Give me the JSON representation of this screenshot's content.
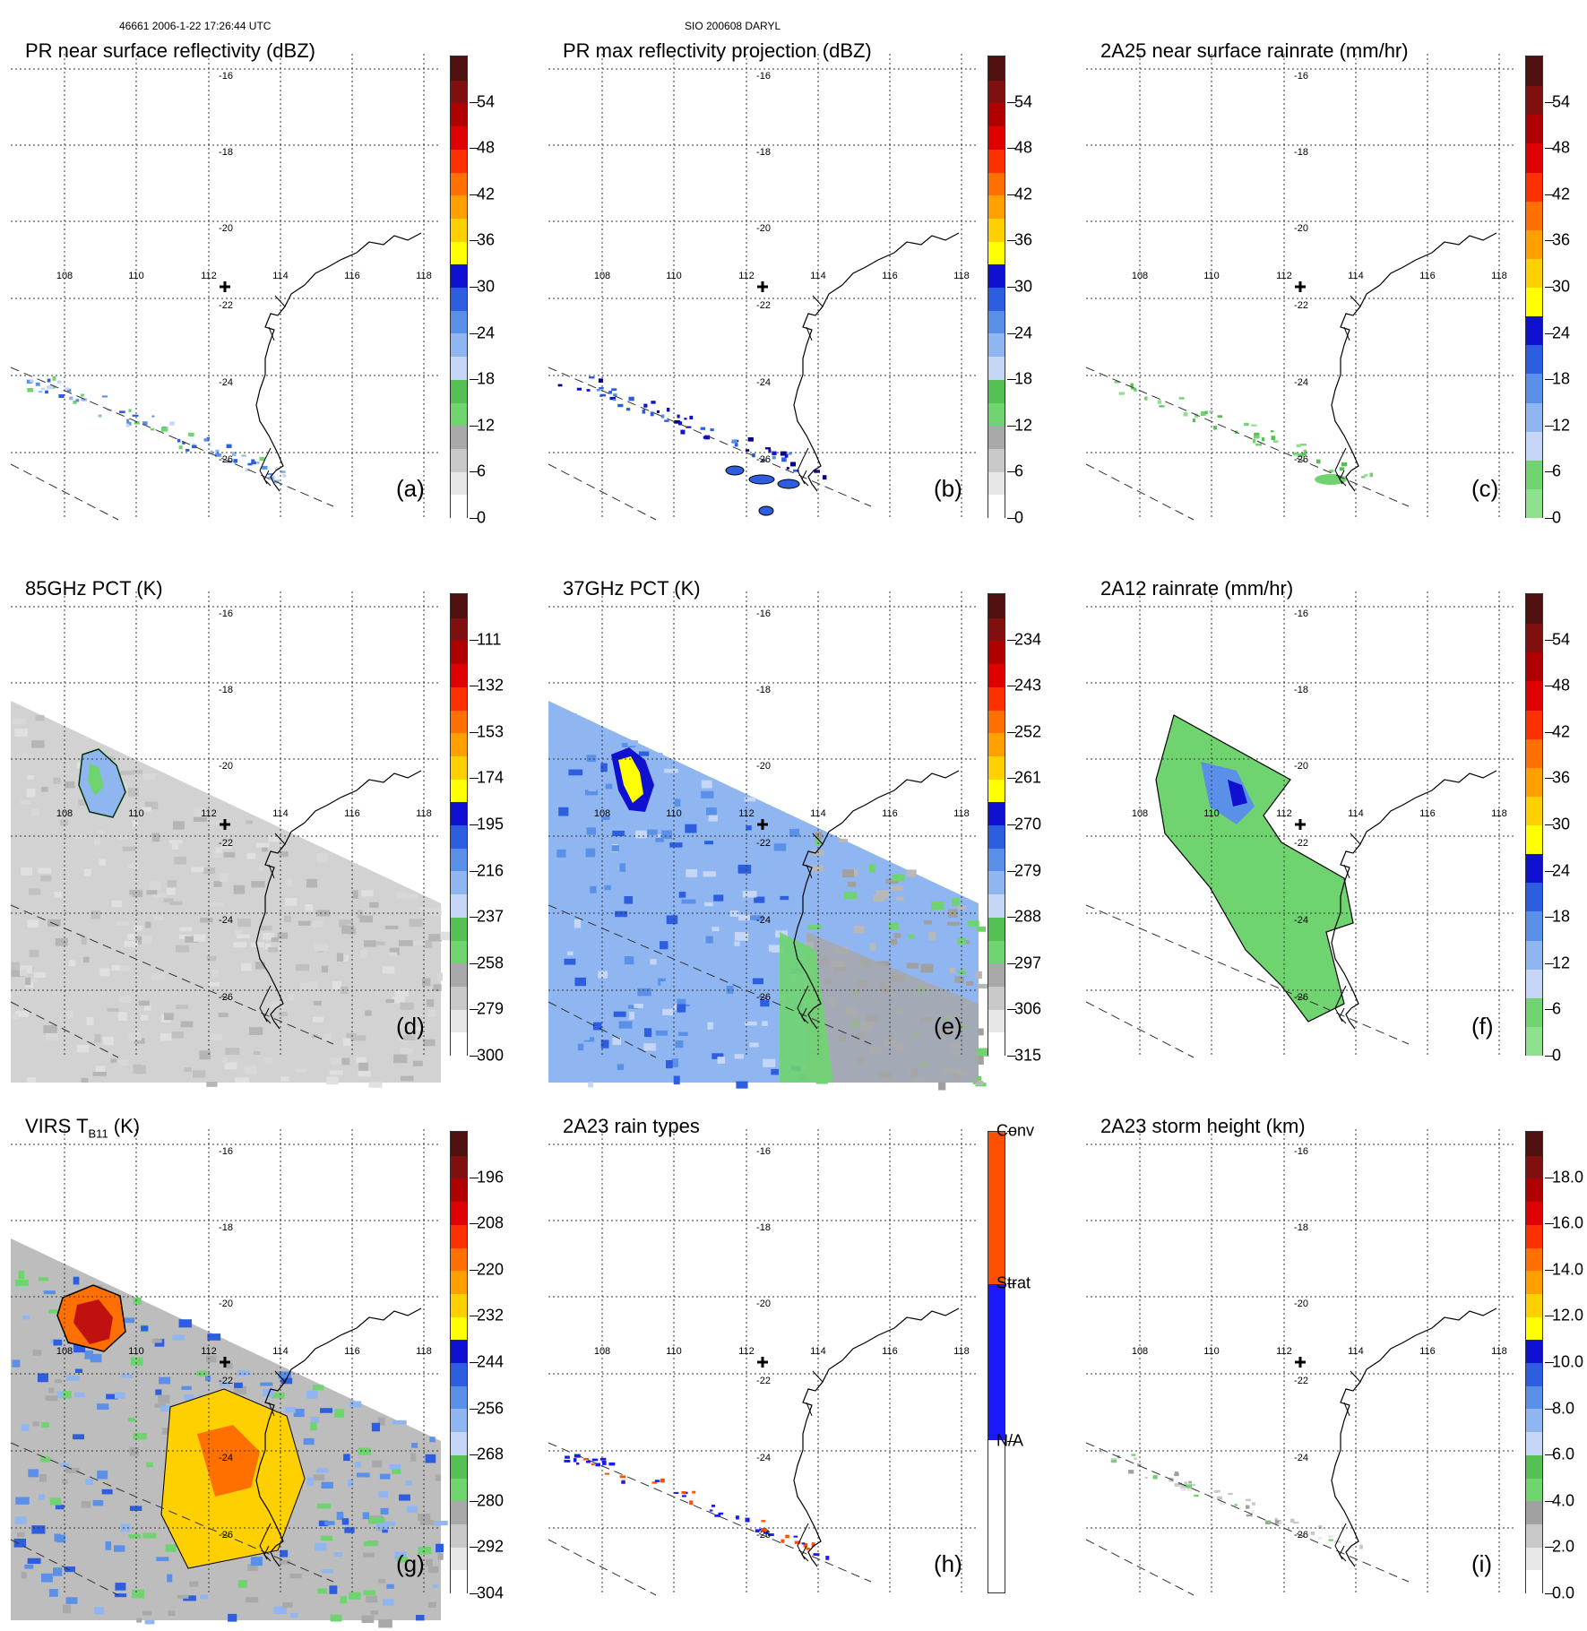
{
  "header": {
    "left": "46661 2006-1-22 17:26:44 UTC",
    "center": "SIO 200608 DARYL"
  },
  "grid": {
    "longitudes": [
      "108",
      "110",
      "112",
      "114",
      "116",
      "118"
    ],
    "latitudes": [
      "-16",
      "-18",
      "-20",
      "-22",
      "-24",
      "-26"
    ]
  },
  "panels": [
    {
      "id": "a",
      "title": "PR near surface reflectivity (dBZ)",
      "label": "(a)",
      "colorbar": "dbz",
      "ticks": [
        "54",
        "48",
        "42",
        "36",
        "30",
        "24",
        "18",
        "12",
        "6",
        "0"
      ],
      "field": "pr_sparse"
    },
    {
      "id": "b",
      "title": "PR max reflectivity projection (dBZ)",
      "label": "(b)",
      "colorbar": "dbz",
      "ticks": [
        "54",
        "48",
        "42",
        "36",
        "30",
        "24",
        "18",
        "12",
        "6",
        "0"
      ],
      "field": "pr_max"
    },
    {
      "id": "c",
      "title": "2A25 near surface rainrate (mm/hr)",
      "label": "(c)",
      "colorbar": "rain",
      "ticks": [
        "54",
        "48",
        "42",
        "36",
        "30",
        "24",
        "18",
        "12",
        "6",
        "0"
      ],
      "field": "pr_rain"
    },
    {
      "id": "d",
      "title": "85GHz PCT (K)",
      "label": "(d)",
      "colorbar": "pct",
      "ticks": [
        "111",
        "132",
        "153",
        "174",
        "195",
        "216",
        "237",
        "258",
        "279",
        "300"
      ],
      "field": "pct85"
    },
    {
      "id": "e",
      "title": "37GHz PCT (K)",
      "label": "(e)",
      "colorbar": "pct",
      "ticks": [
        "234",
        "243",
        "252",
        "261",
        "270",
        "279",
        "288",
        "297",
        "306",
        "315"
      ],
      "field": "pct37"
    },
    {
      "id": "f",
      "title": "2A12 rainrate (mm/hr)",
      "label": "(f)",
      "colorbar": "rain",
      "ticks": [
        "54",
        "48",
        "42",
        "36",
        "30",
        "24",
        "18",
        "12",
        "6",
        "0"
      ],
      "field": "tmi_rain"
    },
    {
      "id": "g",
      "title": "VIRS T",
      "title_sub": "B11",
      "title_tail": " (K)",
      "label": "(g)",
      "colorbar": "pct",
      "ticks": [
        "196",
        "208",
        "220",
        "232",
        "244",
        "256",
        "268",
        "280",
        "292",
        "304"
      ],
      "field": "virs"
    },
    {
      "id": "h",
      "title": "2A23 rain types",
      "label": "(h)",
      "colorbar": "types",
      "ticks": [
        "Conv",
        "Strat",
        "N/A"
      ],
      "field": "types"
    },
    {
      "id": "i",
      "title": "2A23 storm height (km)",
      "label": "(i)",
      "colorbar": "height",
      "ticks": [
        "18.0",
        "16.0",
        "14.0",
        "12.0",
        "10.0",
        "8.0",
        "6.0",
        "4.0",
        "2.0",
        "0.0"
      ],
      "field": "height"
    }
  ],
  "colors": {
    "dbz": [
      "#ffffff",
      "#e6e6e6",
      "#c8c8c8",
      "#a9a9a9",
      "#6fd46f",
      "#55c155",
      "#c6d6f6",
      "#8fb6f0",
      "#5a90e8",
      "#2d5ee0",
      "#1010d0",
      "#ffff00",
      "#ffd000",
      "#ffa000",
      "#ff7000",
      "#ff3000",
      "#e00000",
      "#b00000",
      "#801010",
      "#501010"
    ],
    "rain": [
      "#8ee08e",
      "#6fd46f",
      "#c6d6f6",
      "#8fb6f0",
      "#5a90e8",
      "#2d5ee0",
      "#1010d0",
      "#ffff00",
      "#ffd000",
      "#ffa000",
      "#ff7000",
      "#ff3000",
      "#e00000",
      "#b00000",
      "#801010",
      "#501010"
    ],
    "types": [
      "#ffffff",
      "#1a1aff",
      "#ff5000"
    ],
    "height": [
      "#ffffff",
      "#e8e8e8",
      "#c8c8c8",
      "#a0a0a0",
      "#6fd46f",
      "#55c155",
      "#c6d6f6",
      "#8fb6f0",
      "#5a90e8",
      "#2d5ee0",
      "#1010d0",
      "#ffff00",
      "#ffd000",
      "#ffa000",
      "#ff7000",
      "#ff3000",
      "#e00000",
      "#b00000",
      "#801010",
      "#501010"
    ]
  }
}
